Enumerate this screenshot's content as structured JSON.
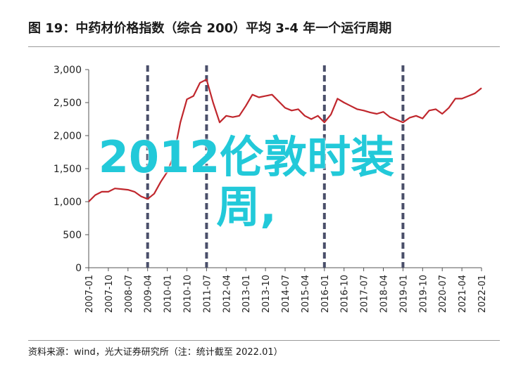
{
  "header": {
    "title": "图 19：中药材价格指数（综合 200）平均 3-4 年一个运行周期"
  },
  "footer": {
    "source": "资料来源：wind，光大证券研究所（注：统计截至 2022.01）"
  },
  "overlay": {
    "line1": "2012伦敦时装",
    "line2": "周,"
  },
  "colors": {
    "series": "#c0272d",
    "cycle_lines": "#4a4f6a",
    "overlay": "#22c9d9"
  },
  "chart_data": {
    "type": "line",
    "title": "图 19：中药材价格指数（综合 200）平均 3-4 年一个运行周期",
    "xlabel": "",
    "ylabel": "",
    "ylim": [
      0,
      3000
    ],
    "yticks": [
      0,
      500,
      1000,
      1500,
      2000,
      2500,
      3000
    ],
    "ytick_labels": [
      "0",
      "500",
      "1,000",
      "1,500",
      "2,000",
      "2,500",
      "3,000"
    ],
    "xticks": [
      "2007-01",
      "2007-10",
      "2008-07",
      "2009-04",
      "2010-01",
      "2010-10",
      "2011-07",
      "2012-04",
      "2013-01",
      "2013-10",
      "2014-07",
      "2015-04",
      "2016-01",
      "2016-10",
      "2017-07",
      "2018-04",
      "2019-01",
      "2019-10",
      "2020-07",
      "2021-04",
      "2022-01"
    ],
    "grid": false,
    "legend": "none",
    "cycle_markers": [
      "2009-04",
      "2011-07",
      "2016-01",
      "2019-01"
    ],
    "series": [
      {
        "x": [
          "2007-01",
          "2007-04",
          "2007-07",
          "2007-10",
          "2008-01",
          "2008-04",
          "2008-07",
          "2008-10",
          "2009-01",
          "2009-04",
          "2009-07",
          "2009-10",
          "2010-01",
          "2010-04",
          "2010-07",
          "2010-10",
          "2011-01",
          "2011-04",
          "2011-07",
          "2011-10",
          "2012-01",
          "2012-04",
          "2012-07",
          "2012-10",
          "2013-01",
          "2013-04",
          "2013-07",
          "2013-10",
          "2014-01",
          "2014-04",
          "2014-07",
          "2014-10",
          "2015-01",
          "2015-04",
          "2015-07",
          "2015-10",
          "2016-01",
          "2016-04",
          "2016-07",
          "2016-10",
          "2017-01",
          "2017-04",
          "2017-07",
          "2017-10",
          "2018-01",
          "2018-04",
          "2018-07",
          "2018-10",
          "2019-01",
          "2019-04",
          "2019-07",
          "2019-10",
          "2020-01",
          "2020-04",
          "2020-07",
          "2020-10",
          "2021-01",
          "2021-04",
          "2021-07",
          "2021-10",
          "2022-01"
        ],
        "values": [
          1000,
          1100,
          1150,
          1150,
          1200,
          1190,
          1180,
          1150,
          1080,
          1040,
          1120,
          1300,
          1450,
          1700,
          2200,
          2550,
          2600,
          2800,
          2850,
          2500,
          2200,
          2300,
          2280,
          2300,
          2450,
          2620,
          2580,
          2600,
          2620,
          2520,
          2420,
          2380,
          2400,
          2300,
          2250,
          2300,
          2200,
          2320,
          2560,
          2500,
          2450,
          2400,
          2380,
          2350,
          2330,
          2360,
          2280,
          2240,
          2200,
          2270,
          2300,
          2260,
          2380,
          2400,
          2330,
          2420,
          2560,
          2560,
          2600,
          2640,
          2720
        ]
      }
    ]
  }
}
